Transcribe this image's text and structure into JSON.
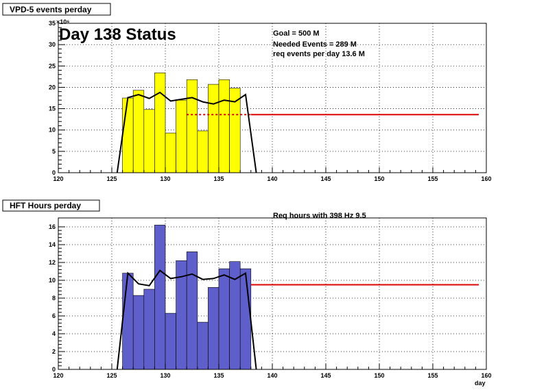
{
  "chart_data": [
    {
      "type": "bar",
      "title": "VPD-5 events perday",
      "annotation_title": "Day 138 Status",
      "info_lines": [
        "Goal =   500 M",
        "Needed Events =   289 M",
        "req events per day 13.6 M"
      ],
      "exponent_label": "×10⁶",
      "xlim": [
        120,
        160
      ],
      "ylim": [
        0,
        35
      ],
      "xticks": [
        120,
        125,
        130,
        135,
        140,
        145,
        150,
        155,
        160
      ],
      "yticks": [
        0,
        5,
        10,
        15,
        20,
        25,
        30,
        35
      ],
      "grid": true,
      "bar_color": "#ffff00",
      "bars_x": [
        126,
        127,
        128,
        129,
        130,
        131,
        132,
        133,
        134,
        135,
        136,
        137
      ],
      "bars_values": [
        17.5,
        19.3,
        14.8,
        23.4,
        9.3,
        17,
        21.8,
        9.8,
        20.7,
        21.8,
        19.8,
        0
      ],
      "line_color": "#000000",
      "line_points": [
        [
          125.5,
          0
        ],
        [
          126.5,
          17.6
        ],
        [
          127.5,
          18.3
        ],
        [
          128.5,
          17.4
        ],
        [
          129.5,
          18.8
        ],
        [
          130.5,
          16.8
        ],
        [
          131.5,
          17.2
        ],
        [
          132.5,
          17.6
        ],
        [
          133.5,
          16.6
        ],
        [
          134.5,
          16.1
        ],
        [
          135.5,
          17.0
        ],
        [
          136.5,
          16.6
        ],
        [
          137.5,
          18.3
        ],
        [
          138.5,
          0
        ]
      ],
      "req_line": {
        "value": 13.6,
        "color": "#dd0000",
        "dashed_from": 132,
        "dashed_to": 138,
        "solid_to": 159.3
      }
    },
    {
      "type": "bar",
      "title": "HFT Hours perday",
      "info_lines": [
        "Req hours with  398 Hz  9.5"
      ],
      "xlabel": "day",
      "xlim": [
        120,
        160
      ],
      "ylim": [
        0,
        17
      ],
      "xticks": [
        120,
        125,
        130,
        135,
        140,
        145,
        150,
        155,
        160
      ],
      "yticks": [
        0,
        2,
        4,
        6,
        8,
        10,
        12,
        14,
        16
      ],
      "grid": true,
      "bar_color": "#5f5fcc",
      "bars_x": [
        126,
        127,
        128,
        129,
        130,
        131,
        132,
        133,
        134,
        135,
        136,
        137
      ],
      "bars_values": [
        10.8,
        8.3,
        9.0,
        16.2,
        6.3,
        12.2,
        13.2,
        5.3,
        9.2,
        11.3,
        12.1,
        11.3
      ],
      "line_color": "#000000",
      "line_points": [
        [
          125.5,
          0
        ],
        [
          126.5,
          10.8
        ],
        [
          127.5,
          9.6
        ],
        [
          128.5,
          9.4
        ],
        [
          129.5,
          11.1
        ],
        [
          130.5,
          10.2
        ],
        [
          131.5,
          10.4
        ],
        [
          132.5,
          10.7
        ],
        [
          133.5,
          10.1
        ],
        [
          134.5,
          10.2
        ],
        [
          135.5,
          10.6
        ],
        [
          136.5,
          10.1
        ],
        [
          137.5,
          10.8
        ],
        [
          138.5,
          0
        ]
      ],
      "req_line": {
        "value": 9.5,
        "color": "#dd0000",
        "solid_from": 138,
        "solid_to": 159.3
      }
    }
  ]
}
